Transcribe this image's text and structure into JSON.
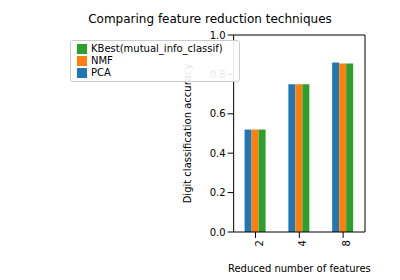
{
  "chart_data": {
    "type": "bar",
    "title": "Comparing feature reduction techniques",
    "x_label": "Reduced number of features",
    "y_label": "Digit classification accuracy",
    "categories": [
      "2",
      "4",
      "8"
    ],
    "series": [
      {
        "name": "PCA",
        "color": "#1f77b4",
        "values": [
          0.52,
          0.75,
          0.86
        ]
      },
      {
        "name": "NMF",
        "color": "#ff7f0e",
        "values": [
          0.52,
          0.75,
          0.855
        ]
      },
      {
        "name": "KBest(mutual_info_classif)",
        "color": "#2ca02c",
        "values": [
          0.52,
          0.75,
          0.855
        ]
      }
    ],
    "ylim": [
      0,
      1
    ],
    "yticks": [
      {
        "value": 0,
        "label": "0.0"
      },
      0.2,
      0.4,
      0.6,
      0.8,
      {
        "value": 1,
        "label": "1.0"
      }
    ],
    "legend": "upper left",
    "grid": false
  }
}
